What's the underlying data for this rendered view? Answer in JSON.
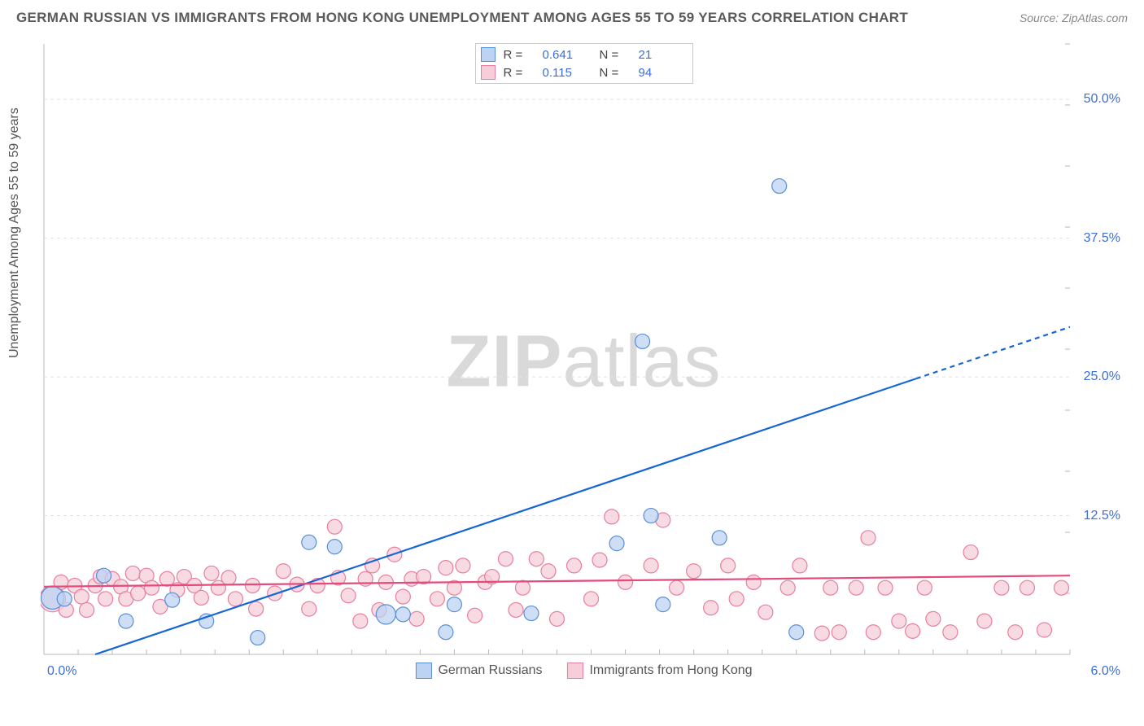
{
  "title": "GERMAN RUSSIAN VS IMMIGRANTS FROM HONG KONG UNEMPLOYMENT AMONG AGES 55 TO 59 YEARS CORRELATION CHART",
  "source": "Source: ZipAtlas.com",
  "ylabel": "Unemployment Among Ages 55 to 59 years",
  "watermark_a": "ZIP",
  "watermark_b": "atlas",
  "chart": {
    "type": "scatter",
    "background_color": "#ffffff",
    "grid_color": "#e2e2e2",
    "axis_color": "#b8b8b8",
    "tick_label_color": "#3a6fd8",
    "xlim": [
      0.0,
      6.0
    ],
    "ylim": [
      0.0,
      55.0
    ],
    "ygrid_values": [
      12.5,
      25.0,
      37.5,
      50.0
    ],
    "ytick_labels": [
      "12.5%",
      "25.0%",
      "37.5%",
      "50.0%"
    ],
    "x_left_label": "0.0%",
    "x_right_label": "6.0%",
    "x_minor_ticks": 30,
    "y_minor_ticks": 10,
    "marker_radius": 9,
    "marker_stroke_width": 1.2,
    "series": [
      {
        "id": "german_russians",
        "label": "German Russians",
        "fill": "#bcd3f3",
        "stroke": "#5b8fd6",
        "line_color": "#1766d4",
        "line_width": 2.2,
        "line_dash_after_x": 5.1,
        "trend": {
          "x1": 0.3,
          "y1": 0.0,
          "x2": 6.0,
          "y2": 29.5
        },
        "R_label": "R =",
        "R_value": "0.641",
        "N_label": "N =",
        "N_value": "21",
        "points": [
          {
            "x": 0.05,
            "y": 5.1,
            "r": 14
          },
          {
            "x": 0.12,
            "y": 5.0
          },
          {
            "x": 0.35,
            "y": 7.1
          },
          {
            "x": 0.48,
            "y": 3.0
          },
          {
            "x": 0.75,
            "y": 4.9
          },
          {
            "x": 0.95,
            "y": 3.0
          },
          {
            "x": 1.25,
            "y": 1.5
          },
          {
            "x": 1.55,
            "y": 10.1
          },
          {
            "x": 1.7,
            "y": 9.7
          },
          {
            "x": 2.0,
            "y": 3.6,
            "r": 12
          },
          {
            "x": 2.1,
            "y": 3.6
          },
          {
            "x": 2.35,
            "y": 2.0
          },
          {
            "x": 2.4,
            "y": 4.5
          },
          {
            "x": 2.85,
            "y": 3.7
          },
          {
            "x": 3.35,
            "y": 10.0
          },
          {
            "x": 3.5,
            "y": 28.2
          },
          {
            "x": 3.55,
            "y": 12.5
          },
          {
            "x": 3.62,
            "y": 4.5
          },
          {
            "x": 3.95,
            "y": 10.5
          },
          {
            "x": 4.3,
            "y": 42.2
          },
          {
            "x": 4.4,
            "y": 2.0
          }
        ]
      },
      {
        "id": "hong_kong",
        "label": "Immigrants from Hong Kong",
        "fill": "#f6cdd8",
        "stroke": "#e87ea0",
        "line_color": "#e24b7a",
        "line_width": 2.2,
        "trend": {
          "x1": 0.0,
          "y1": 6.1,
          "x2": 6.0,
          "y2": 7.1
        },
        "R_label": "R =",
        "R_value": "0.115",
        "N_label": "N =",
        "N_value": "94",
        "points": [
          {
            "x": 0.05,
            "y": 5.0,
            "r": 16
          },
          {
            "x": 0.1,
            "y": 6.5
          },
          {
            "x": 0.13,
            "y": 4.0
          },
          {
            "x": 0.18,
            "y": 6.2
          },
          {
            "x": 0.22,
            "y": 5.2
          },
          {
            "x": 0.25,
            "y": 4.0
          },
          {
            "x": 0.3,
            "y": 6.2
          },
          {
            "x": 0.33,
            "y": 7.0
          },
          {
            "x": 0.36,
            "y": 5.0
          },
          {
            "x": 0.4,
            "y": 6.8
          },
          {
            "x": 0.45,
            "y": 6.1
          },
          {
            "x": 0.48,
            "y": 5.0
          },
          {
            "x": 0.52,
            "y": 7.3
          },
          {
            "x": 0.55,
            "y": 5.5
          },
          {
            "x": 0.6,
            "y": 7.1
          },
          {
            "x": 0.63,
            "y": 6.0
          },
          {
            "x": 0.68,
            "y": 4.3
          },
          {
            "x": 0.72,
            "y": 6.8
          },
          {
            "x": 0.78,
            "y": 5.8
          },
          {
            "x": 0.82,
            "y": 7.0
          },
          {
            "x": 0.88,
            "y": 6.2
          },
          {
            "x": 0.92,
            "y": 5.1
          },
          {
            "x": 0.98,
            "y": 7.3
          },
          {
            "x": 1.02,
            "y": 6.0
          },
          {
            "x": 1.08,
            "y": 6.9
          },
          {
            "x": 1.12,
            "y": 5.0
          },
          {
            "x": 1.22,
            "y": 6.2
          },
          {
            "x": 1.24,
            "y": 4.1
          },
          {
            "x": 1.35,
            "y": 5.5
          },
          {
            "x": 1.4,
            "y": 7.5
          },
          {
            "x": 1.48,
            "y": 6.3
          },
          {
            "x": 1.55,
            "y": 4.1
          },
          {
            "x": 1.6,
            "y": 6.2
          },
          {
            "x": 1.7,
            "y": 11.5
          },
          {
            "x": 1.72,
            "y": 6.9
          },
          {
            "x": 1.78,
            "y": 5.3
          },
          {
            "x": 1.85,
            "y": 3.0
          },
          {
            "x": 1.88,
            "y": 6.8
          },
          {
            "x": 1.92,
            "y": 8.0
          },
          {
            "x": 1.96,
            "y": 4.0
          },
          {
            "x": 2.0,
            "y": 6.5
          },
          {
            "x": 2.05,
            "y": 9.0
          },
          {
            "x": 2.1,
            "y": 5.2
          },
          {
            "x": 2.15,
            "y": 6.8
          },
          {
            "x": 2.18,
            "y": 3.2
          },
          {
            "x": 2.22,
            "y": 7.0
          },
          {
            "x": 2.3,
            "y": 5.0
          },
          {
            "x": 2.35,
            "y": 7.8
          },
          {
            "x": 2.4,
            "y": 6.0
          },
          {
            "x": 2.45,
            "y": 8.0
          },
          {
            "x": 2.52,
            "y": 3.5
          },
          {
            "x": 2.58,
            "y": 6.5
          },
          {
            "x": 2.62,
            "y": 7.0
          },
          {
            "x": 2.7,
            "y": 8.6
          },
          {
            "x": 2.76,
            "y": 4.0
          },
          {
            "x": 2.8,
            "y": 6.0
          },
          {
            "x": 2.88,
            "y": 8.6
          },
          {
            "x": 2.95,
            "y": 7.5
          },
          {
            "x": 3.0,
            "y": 3.2
          },
          {
            "x": 3.1,
            "y": 8.0
          },
          {
            "x": 3.2,
            "y": 5.0
          },
          {
            "x": 3.25,
            "y": 8.5
          },
          {
            "x": 3.32,
            "y": 12.4
          },
          {
            "x": 3.4,
            "y": 6.5
          },
          {
            "x": 3.55,
            "y": 8.0
          },
          {
            "x": 3.62,
            "y": 12.1
          },
          {
            "x": 3.7,
            "y": 6.0
          },
          {
            "x": 3.8,
            "y": 7.5
          },
          {
            "x": 3.9,
            "y": 4.2
          },
          {
            "x": 4.0,
            "y": 8.0
          },
          {
            "x": 4.05,
            "y": 5.0
          },
          {
            "x": 4.15,
            "y": 6.5
          },
          {
            "x": 4.22,
            "y": 3.8
          },
          {
            "x": 4.35,
            "y": 6.0
          },
          {
            "x": 4.42,
            "y": 8.0
          },
          {
            "x": 4.55,
            "y": 1.9
          },
          {
            "x": 4.6,
            "y": 6.0
          },
          {
            "x": 4.65,
            "y": 2.0
          },
          {
            "x": 4.75,
            "y": 6.0
          },
          {
            "x": 4.82,
            "y": 10.5
          },
          {
            "x": 4.85,
            "y": 2.0
          },
          {
            "x": 4.92,
            "y": 6.0
          },
          {
            "x": 5.0,
            "y": 3.0
          },
          {
            "x": 5.08,
            "y": 2.1
          },
          {
            "x": 5.15,
            "y": 6.0
          },
          {
            "x": 5.2,
            "y": 3.2
          },
          {
            "x": 5.3,
            "y": 2.0
          },
          {
            "x": 5.42,
            "y": 9.2
          },
          {
            "x": 5.5,
            "y": 3.0
          },
          {
            "x": 5.6,
            "y": 6.0
          },
          {
            "x": 5.68,
            "y": 2.0
          },
          {
            "x": 5.75,
            "y": 6.0
          },
          {
            "x": 5.85,
            "y": 2.2
          },
          {
            "x": 5.95,
            "y": 6.0
          }
        ]
      }
    ]
  }
}
